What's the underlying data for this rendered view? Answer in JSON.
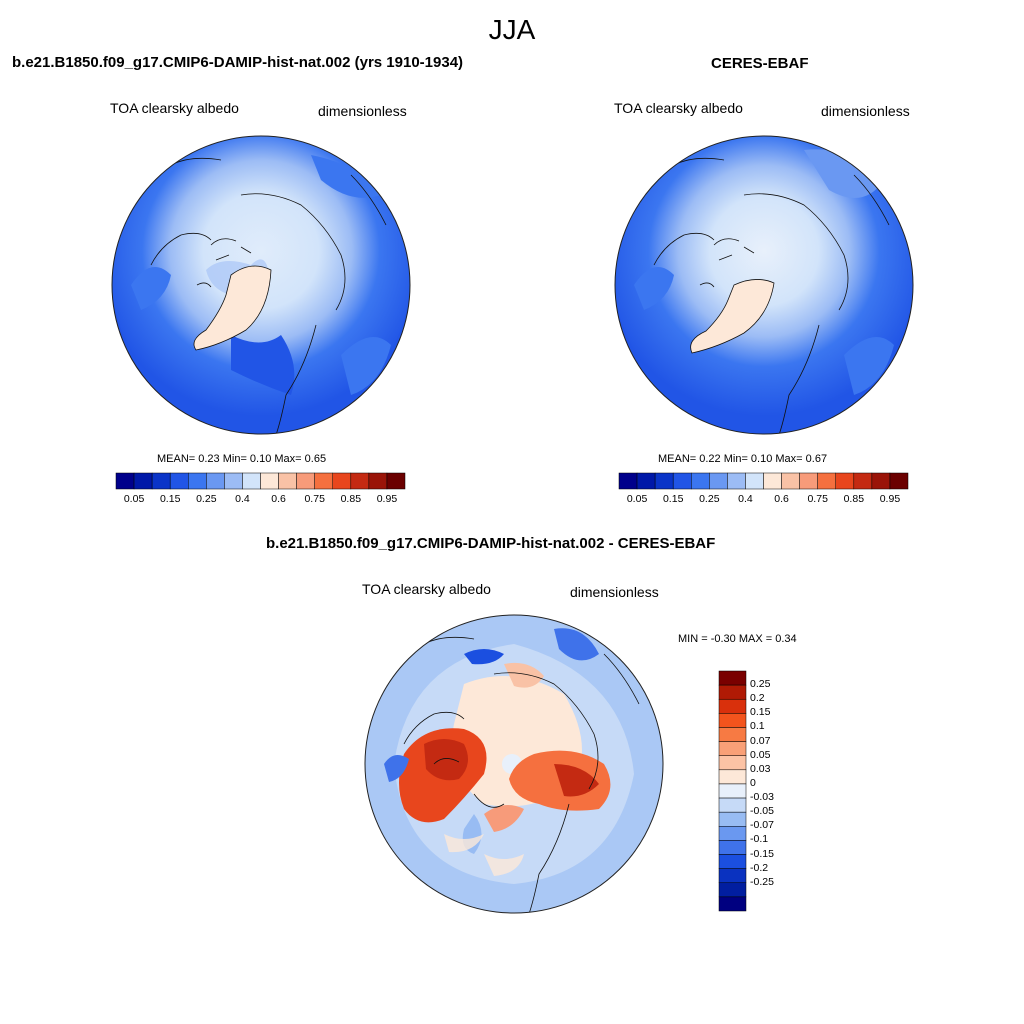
{
  "suptitle": "JJA",
  "panels": {
    "model": {
      "title": "b.e21.B1850.f09_g17.CMIP6-DAMIP-hist-nat.002 (yrs 1910-1934)",
      "variable": "TOA clearsky albedo",
      "units": "dimensionless",
      "stats": "MEAN=   0.23  Min=   0.10  Max=   0.65"
    },
    "obs": {
      "title": "CERES-EBAF",
      "variable": "TOA clearsky albedo",
      "units": "dimensionless",
      "stats": "MEAN=   0.22  Min=   0.10  Max=   0.67"
    },
    "diff": {
      "title": "b.e21.B1850.f09_g17.CMIP6-DAMIP-hist-nat.002 - CERES-EBAF",
      "variable": "TOA clearsky albedo",
      "units": "dimensionless",
      "stats": "MIN =  -0.30 MAX =   0.34"
    }
  },
  "colorbars": {
    "abs": {
      "colors": [
        "#00008b",
        "#0018a8",
        "#0a34c8",
        "#2155e6",
        "#3b76f0",
        "#6a98f2",
        "#9cbcf5",
        "#d2e4fa",
        "#fde8d8",
        "#f9c2a6",
        "#f79b7a",
        "#f5703f",
        "#e8461d",
        "#c42a12",
        "#9a1408",
        "#6b0000"
      ],
      "tick_labels": [
        "0.05",
        "0.15",
        "0.25",
        "0.4",
        "0.6",
        "0.75",
        "0.85",
        "0.95"
      ]
    },
    "diff": {
      "colors": [
        "#7a0000",
        "#b01a05",
        "#d9300c",
        "#f3541d",
        "#f77a43",
        "#f9a077",
        "#fcc3a5",
        "#fde8d8",
        "#e8f0fb",
        "#c6daf7",
        "#98bcf3",
        "#6a98f0",
        "#3f72ea",
        "#1b4fe0",
        "#0a32c0",
        "#011ea0",
        "#000080"
      ],
      "tick_labels": [
        "0.25",
        "0.2",
        "0.15",
        "0.1",
        "0.07",
        "0.05",
        "0.03",
        "0",
        "-0.03",
        "-0.05",
        "-0.07",
        "-0.1",
        "-0.15",
        "-0.2",
        "-0.25"
      ]
    }
  }
}
